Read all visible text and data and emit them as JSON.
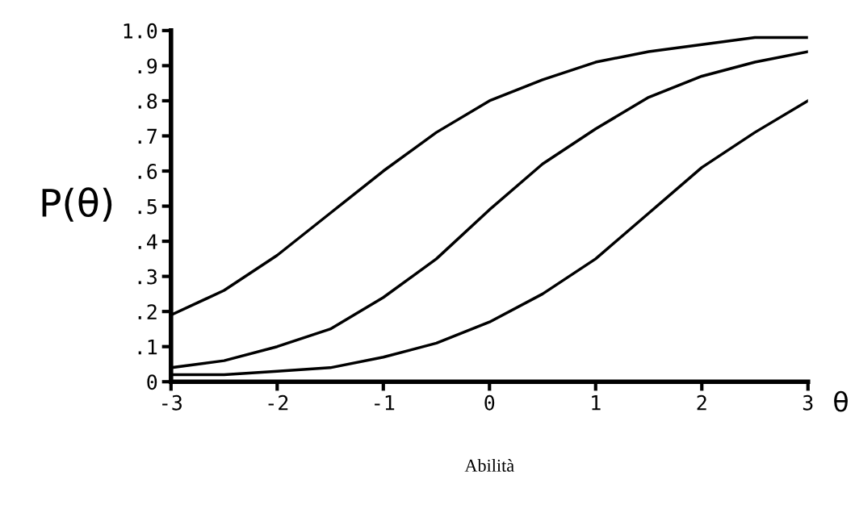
{
  "chart_data": {
    "type": "line",
    "xlabel": "Abilità",
    "ylabel": "P(θ)",
    "annotations": [
      "θ"
    ],
    "x": [
      -3,
      -2.5,
      -2,
      -1.5,
      -1,
      -0.5,
      0,
      0.5,
      1,
      1.5,
      2,
      2.5,
      3
    ],
    "series": [
      {
        "color": "#000000",
        "values": [
          0.19,
          0.26,
          0.36,
          0.48,
          0.6,
          0.71,
          0.8,
          0.86,
          0.91,
          0.94,
          0.96,
          0.98,
          0.98
        ]
      },
      {
        "color": "#000000",
        "values": [
          0.04,
          0.06,
          0.1,
          0.15,
          0.24,
          0.35,
          0.49,
          0.62,
          0.72,
          0.81,
          0.87,
          0.91,
          0.94
        ]
      },
      {
        "color": "#000000",
        "values": [
          0.02,
          0.02,
          0.03,
          0.04,
          0.07,
          0.11,
          0.17,
          0.25,
          0.35,
          0.48,
          0.61,
          0.71,
          0.8
        ]
      }
    ],
    "xlim": [
      -3,
      3
    ],
    "ylim": [
      0,
      1
    ],
    "xticks": [
      {
        "value": -3,
        "label": "-3"
      },
      {
        "value": -2,
        "label": "-2"
      },
      {
        "value": -1,
        "label": "-1"
      },
      0,
      1,
      2,
      3
    ],
    "yticks": [
      0,
      {
        "value": 0.1,
        "label": ".1"
      },
      {
        "value": 0.2,
        "label": ".2"
      },
      {
        "value": 0.3,
        "label": ".3"
      },
      {
        "value": 0.4,
        "label": ".4"
      },
      {
        "value": 0.5,
        "label": ".5"
      },
      {
        "value": 0.6,
        "label": ".6"
      },
      {
        "value": 0.7,
        "label": ".7"
      },
      {
        "value": 0.8,
        "label": ".8"
      },
      {
        "value": 0.9,
        "label": ".9"
      },
      {
        "value": 1.0,
        "label": "1.0"
      }
    ],
    "grid": false,
    "marker": "none",
    "line_style": "solid"
  }
}
